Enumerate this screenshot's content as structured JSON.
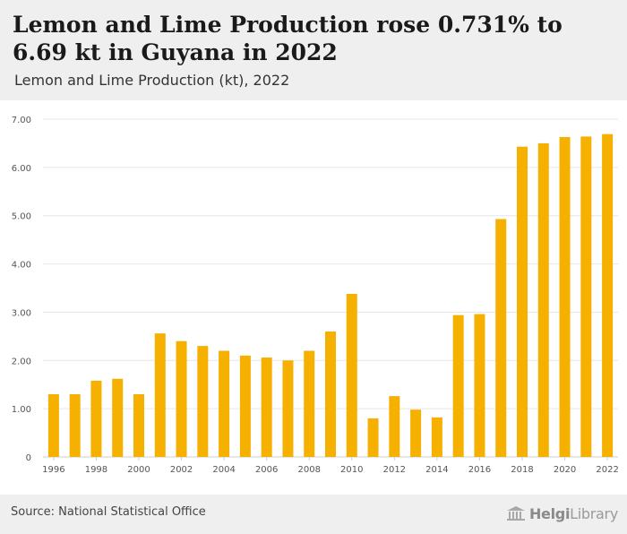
{
  "header": {
    "title": "Lemon and Lime Production rose 0.731% to 6.69 kt in Guyana in 2022",
    "subtitle": "Lemon and Lime Production (kt), 2022"
  },
  "footer": {
    "source": "Source: National Statistical Office",
    "logo_part1": "Helgi",
    "logo_part2": "Library"
  },
  "colors": {
    "bar": "#f5b000",
    "grid": "#e6e6e6",
    "axis_text": "#555555"
  },
  "chart_data": {
    "type": "bar",
    "categories": [
      "1996",
      "1997",
      "1998",
      "1999",
      "2000",
      "2001",
      "2002",
      "2003",
      "2004",
      "2005",
      "2006",
      "2007",
      "2008",
      "2009",
      "2010",
      "2011",
      "2012",
      "2013",
      "2014",
      "2015",
      "2016",
      "2017",
      "2018",
      "2019",
      "2020",
      "2021",
      "2022"
    ],
    "x_tick_labels": [
      "1996",
      "1998",
      "2000",
      "2002",
      "2004",
      "2006",
      "2008",
      "2010",
      "2012",
      "2014",
      "2016",
      "2018",
      "2020",
      "2022"
    ],
    "values": [
      1.3,
      1.3,
      1.58,
      1.62,
      1.3,
      2.56,
      2.4,
      2.3,
      2.2,
      2.1,
      2.06,
      2.0,
      2.2,
      2.6,
      3.38,
      0.8,
      1.26,
      0.98,
      0.82,
      2.94,
      2.96,
      4.93,
      6.43,
      6.5,
      6.63,
      6.64,
      6.69
    ],
    "y_ticks": [
      "0",
      "1.00",
      "2.00",
      "3.00",
      "4.00",
      "5.00",
      "6.00",
      "7.00"
    ],
    "ylim": [
      0,
      7
    ],
    "grid": true
  }
}
